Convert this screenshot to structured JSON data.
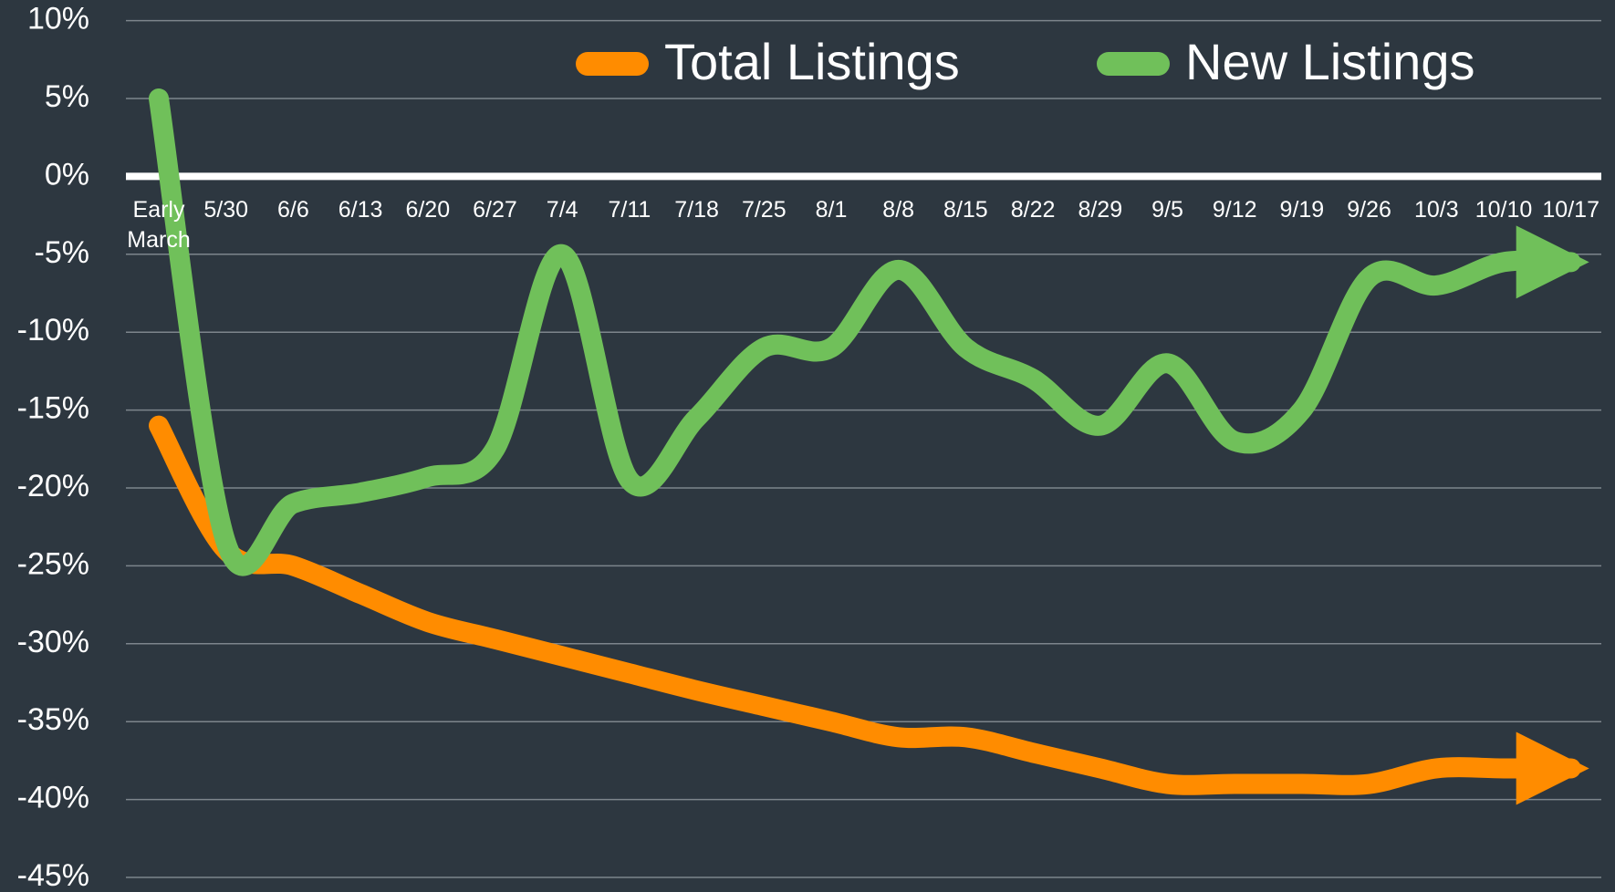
{
  "chart_data": {
    "type": "line",
    "categories": [
      "Early March",
      "5/30",
      "6/6",
      "6/13",
      "6/20",
      "6/27",
      "7/4",
      "7/11",
      "7/18",
      "7/25",
      "8/1",
      "8/8",
      "8/15",
      "8/22",
      "8/29",
      "9/5",
      "9/12",
      "9/19",
      "9/26",
      "10/3",
      "10/10",
      "10/17"
    ],
    "series": [
      {
        "name": "Total Listings",
        "color": "#ff8c00",
        "values": [
          -16,
          -24,
          -25,
          -26.8,
          -28.6,
          -29.7,
          -30.8,
          -31.9,
          -33,
          -34,
          -35,
          -36,
          -36,
          -37,
          -38,
          -39,
          -39,
          -39,
          -39,
          -38,
          -38,
          -38
        ]
      },
      {
        "name": "New Listings",
        "color": "#70c05a",
        "values": [
          5,
          -23.5,
          -21,
          -20.3,
          -19.3,
          -17.5,
          -5,
          -19.5,
          -15.5,
          -11,
          -11,
          -6,
          -11,
          -13,
          -16,
          -12,
          -17,
          -15,
          -6.5,
          -7,
          -5.5,
          -5.5
        ]
      }
    ],
    "ylim": [
      -45,
      10
    ],
    "yticks": [
      {
        "value": 10,
        "label": "10%"
      },
      {
        "value": 5,
        "label": "5%"
      },
      {
        "value": 0,
        "label": "0%"
      },
      {
        "value": -5,
        "label": "-5%"
      },
      {
        "value": -10,
        "label": "-10%"
      },
      {
        "value": -15,
        "label": "-15%"
      },
      {
        "value": -20,
        "label": "-20%"
      },
      {
        "value": -25,
        "label": "-25%"
      },
      {
        "value": -30,
        "label": "-30%"
      },
      {
        "value": -35,
        "label": "-35%"
      },
      {
        "value": -40,
        "label": "-40%"
      },
      {
        "value": -45,
        "label": "-45%"
      }
    ],
    "grid": true,
    "legend": "top"
  }
}
